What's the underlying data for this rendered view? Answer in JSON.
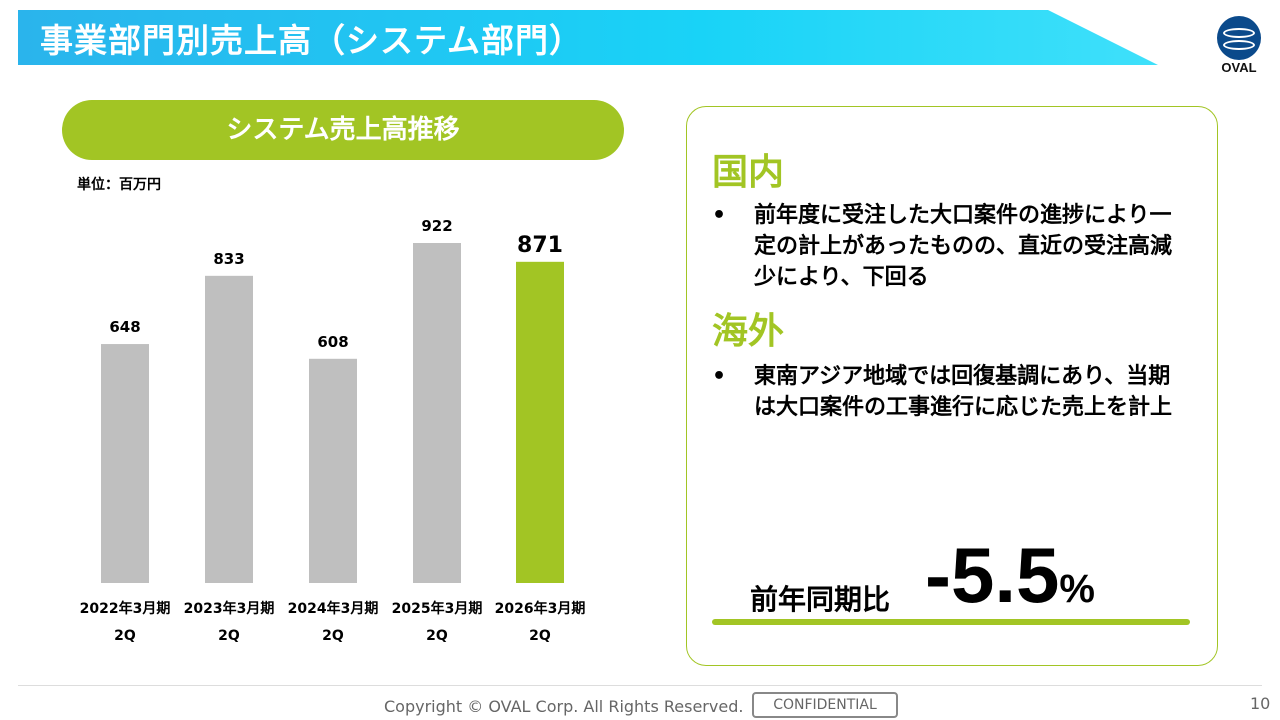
{
  "header": {
    "title": "事業部門別売上高（システム部門）",
    "logo_text": "OVAL"
  },
  "chart_section": {
    "title": "システム売上高推移",
    "unit": "単位：百万円"
  },
  "chart_data": {
    "type": "bar",
    "title": "システム売上高推移",
    "ylabel": "単位：百万円",
    "categories": [
      [
        "2022年3月期",
        "2Q"
      ],
      [
        "2023年3月期",
        "2Q"
      ],
      [
        "2024年3月期",
        "2Q"
      ],
      [
        "2025年3月期",
        "2Q"
      ],
      [
        "2026年3月期",
        "2Q"
      ]
    ],
    "values": [
      648,
      833,
      608,
      922,
      871
    ],
    "labels": [
      "648",
      "833",
      "608",
      "922",
      "871"
    ],
    "colors": [
      "#bfbfbf",
      "#bfbfbf",
      "#bfbfbf",
      "#bfbfbf",
      "#a2c524"
    ],
    "highlight_index": 4,
    "ylim": [
      0,
      922
    ]
  },
  "panel": {
    "domestic_heading": "国内",
    "domestic_text": "前年度に受注した大口案件の進捗により一定の計上があったものの、直近の受注高減少により、下回る",
    "overseas_heading": "海外",
    "overseas_text": "東南アジア地域では回復基調にあり、当期は大口案件の工事進行に応じた売上を計上",
    "yoy_label": "前年同期比",
    "yoy_value": "-5.5",
    "yoy_unit": "%"
  },
  "footer": {
    "copyright": "Copyright © OVAL Corp. All Rights Reserved.",
    "confidential": "CONFIDENTIAL",
    "page": "10"
  }
}
